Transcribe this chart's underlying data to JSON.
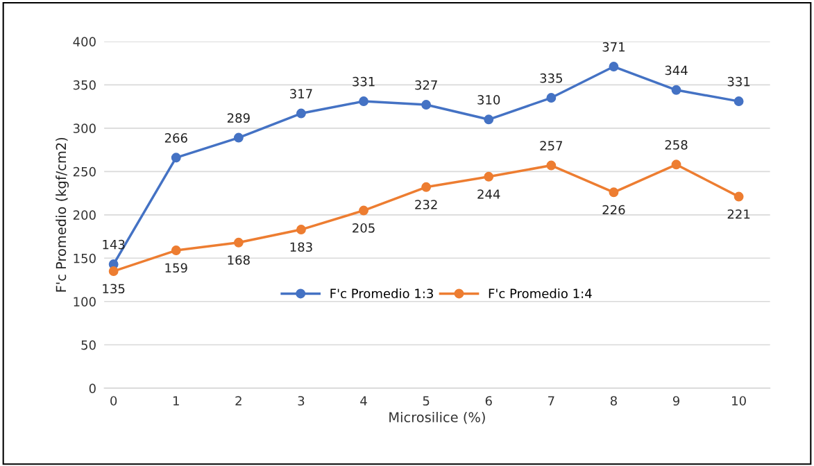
{
  "chart_data": {
    "type": "line",
    "xlabel": "Microsilice (%)",
    "ylabel": "F'c Promedio (kgf/cm2)",
    "categories": [
      "0",
      "1",
      "2",
      "3",
      "4",
      "5",
      "6",
      "7",
      "8",
      "9",
      "10"
    ],
    "series": [
      {
        "name": "F'c Promedio 1:3",
        "color": "#4472c4",
        "values": [
          143,
          266,
          289,
          317,
          331,
          327,
          310,
          335,
          371,
          344,
          331
        ]
      },
      {
        "name": "F'c Promedio 1:4",
        "color": "#ed7d31",
        "values": [
          135,
          159,
          168,
          183,
          205,
          232,
          244,
          257,
          226,
          258,
          221
        ]
      }
    ],
    "ylim": [
      0,
      400
    ],
    "yticks": [
      0,
      50,
      100,
      150,
      200,
      250,
      300,
      350,
      400
    ],
    "grid": "y",
    "legend": "bottom",
    "marker": "circle",
    "line_style": "solid",
    "data_labels": true
  }
}
